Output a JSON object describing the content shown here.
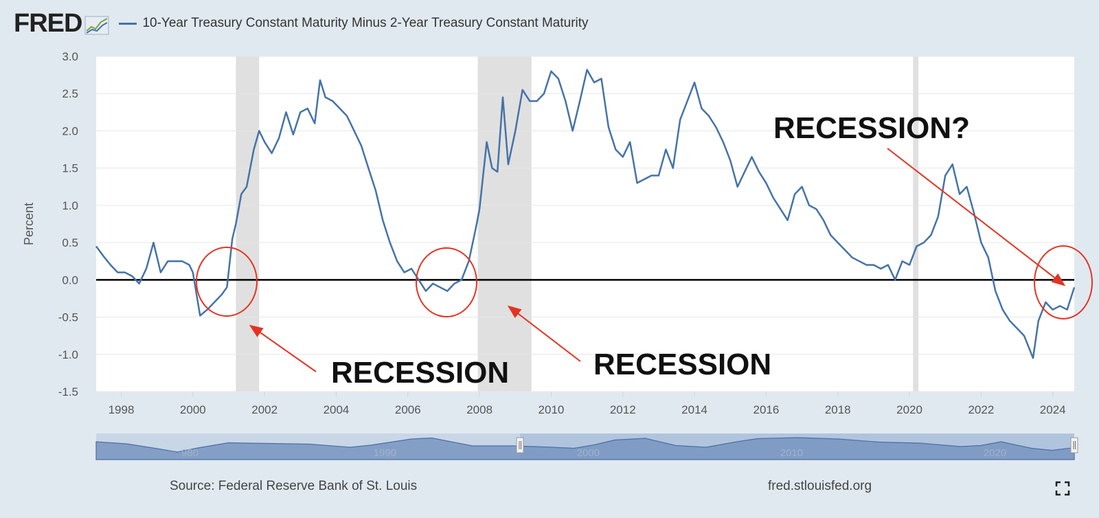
{
  "header": {
    "logo_text": "FRED",
    "series_title": "10-Year Treasury Constant Maturity Minus 2-Year Treasury Constant Maturity"
  },
  "footer": {
    "source": "Source: Federal Reserve Bank of St. Louis",
    "site": "fred.stlouisfed.org",
    "fullscreen_icon": "expand-icon"
  },
  "colors": {
    "line": "#4572a7",
    "recession_band": "#e0e0e0",
    "annotation": "#e53222",
    "background": "#e1e9f0",
    "navigator_fill": "#7895c0",
    "navigator_window": "#b0c4de"
  },
  "chart_data": {
    "type": "line",
    "title": "10-Year Treasury Constant Maturity Minus 2-Year Treasury Constant Maturity",
    "ylabel": "Percent",
    "xlabel": "",
    "xlim": [
      1997.3,
      2024.6
    ],
    "ylim": [
      -1.5,
      3.0
    ],
    "y_ticks": [
      3.0,
      2.5,
      2.0,
      1.5,
      1.0,
      0.5,
      0.0,
      -0.5,
      -1.0,
      -1.5
    ],
    "y_tick_labels": [
      "3.0",
      "2.5",
      "2.0",
      "1.5",
      "1.0",
      "0.5",
      "0.0",
      "-0.5",
      "-1.0",
      "-1.5"
    ],
    "x_ticks": [
      1998,
      2000,
      2002,
      2004,
      2006,
      2008,
      2010,
      2012,
      2014,
      2016,
      2018,
      2020,
      2022,
      2024
    ],
    "x_tick_labels": [
      "1998",
      "2000",
      "2002",
      "2004",
      "2006",
      "2008",
      "2010",
      "2012",
      "2014",
      "2016",
      "2018",
      "2020",
      "2022",
      "2024"
    ],
    "recessions": [
      [
        2001.2,
        2001.85
      ],
      [
        2007.95,
        2009.45
      ],
      [
        2020.1,
        2020.25
      ]
    ],
    "series": [
      {
        "name": "10-Year Treasury Constant Maturity Minus 2-Year Treasury Constant Maturity",
        "x": [
          1997.3,
          1997.5,
          1997.7,
          1997.9,
          1998.1,
          1998.3,
          1998.5,
          1998.7,
          1998.9,
          1999.1,
          1999.3,
          1999.5,
          1999.7,
          1999.9,
          2000.0,
          2000.2,
          2000.4,
          2000.6,
          2000.8,
          2000.95,
          2001.1,
          2001.2,
          2001.35,
          2001.5,
          2001.7,
          2001.85,
          2002.0,
          2002.2,
          2002.4,
          2002.6,
          2002.8,
          2003.0,
          2003.2,
          2003.4,
          2003.55,
          2003.7,
          2003.9,
          2004.1,
          2004.3,
          2004.5,
          2004.7,
          2004.9,
          2005.1,
          2005.3,
          2005.5,
          2005.7,
          2005.9,
          2006.1,
          2006.3,
          2006.5,
          2006.7,
          2006.9,
          2007.1,
          2007.3,
          2007.5,
          2007.7,
          2007.9,
          2008.0,
          2008.2,
          2008.35,
          2008.5,
          2008.65,
          2008.8,
          2009.0,
          2009.2,
          2009.4,
          2009.6,
          2009.8,
          2010.0,
          2010.2,
          2010.4,
          2010.6,
          2010.8,
          2011.0,
          2011.2,
          2011.4,
          2011.6,
          2011.8,
          2012.0,
          2012.2,
          2012.4,
          2012.6,
          2012.8,
          2013.0,
          2013.2,
          2013.4,
          2013.6,
          2013.8,
          2014.0,
          2014.2,
          2014.4,
          2014.6,
          2014.8,
          2015.0,
          2015.2,
          2015.4,
          2015.6,
          2015.8,
          2016.0,
          2016.2,
          2016.4,
          2016.6,
          2016.8,
          2017.0,
          2017.2,
          2017.4,
          2017.6,
          2017.8,
          2018.0,
          2018.2,
          2018.4,
          2018.6,
          2018.8,
          2019.0,
          2019.2,
          2019.4,
          2019.6,
          2019.8,
          2020.0,
          2020.2,
          2020.4,
          2020.6,
          2020.8,
          2021.0,
          2021.2,
          2021.4,
          2021.6,
          2021.8,
          2022.0,
          2022.2,
          2022.4,
          2022.6,
          2022.8,
          2023.0,
          2023.2,
          2023.45,
          2023.6,
          2023.8,
          2024.0,
          2024.2,
          2024.4,
          2024.6
        ],
        "values": [
          0.45,
          0.32,
          0.2,
          0.1,
          0.1,
          0.05,
          -0.05,
          0.15,
          0.5,
          0.1,
          0.25,
          0.25,
          0.25,
          0.2,
          0.1,
          -0.48,
          -0.4,
          -0.3,
          -0.2,
          -0.1,
          0.55,
          0.75,
          1.15,
          1.25,
          1.75,
          2.0,
          1.85,
          1.7,
          1.9,
          2.25,
          1.95,
          2.25,
          2.3,
          2.1,
          2.68,
          2.45,
          2.4,
          2.3,
          2.2,
          2.0,
          1.8,
          1.5,
          1.2,
          0.8,
          0.5,
          0.25,
          0.1,
          0.15,
          0.0,
          -0.15,
          -0.05,
          -0.1,
          -0.15,
          -0.05,
          0.0,
          0.25,
          0.7,
          0.95,
          1.85,
          1.5,
          1.45,
          2.45,
          1.55,
          2.0,
          2.55,
          2.4,
          2.4,
          2.5,
          2.8,
          2.7,
          2.4,
          2.0,
          2.4,
          2.82,
          2.65,
          2.7,
          2.05,
          1.75,
          1.65,
          1.85,
          1.3,
          1.35,
          1.4,
          1.4,
          1.75,
          1.5,
          2.15,
          2.4,
          2.65,
          2.3,
          2.2,
          2.05,
          1.85,
          1.6,
          1.25,
          1.45,
          1.65,
          1.45,
          1.3,
          1.1,
          0.95,
          0.8,
          1.15,
          1.25,
          1.0,
          0.95,
          0.8,
          0.6,
          0.5,
          0.4,
          0.3,
          0.25,
          0.2,
          0.2,
          0.15,
          0.2,
          0.0,
          0.25,
          0.2,
          0.45,
          0.5,
          0.6,
          0.85,
          1.4,
          1.55,
          1.15,
          1.25,
          0.9,
          0.5,
          0.3,
          -0.15,
          -0.4,
          -0.55,
          -0.65,
          -0.75,
          -1.05,
          -0.55,
          -0.3,
          -0.4,
          -0.35,
          -0.4,
          -0.1
        ]
      }
    ],
    "reference_line": 0.0,
    "annotations": [
      {
        "text": "RECESSION",
        "position": "bottom-left"
      },
      {
        "text": "RECESSION",
        "position": "bottom-center"
      },
      {
        "text": "RECESSION?",
        "position": "top-right"
      }
    ],
    "navigator": {
      "x_ticks": [
        1990,
        2000,
        2010,
        2020
      ],
      "x_tick_labels": [
        "1990",
        "2000",
        "2010",
        "2020"
      ],
      "partial_label": "980"
    }
  }
}
